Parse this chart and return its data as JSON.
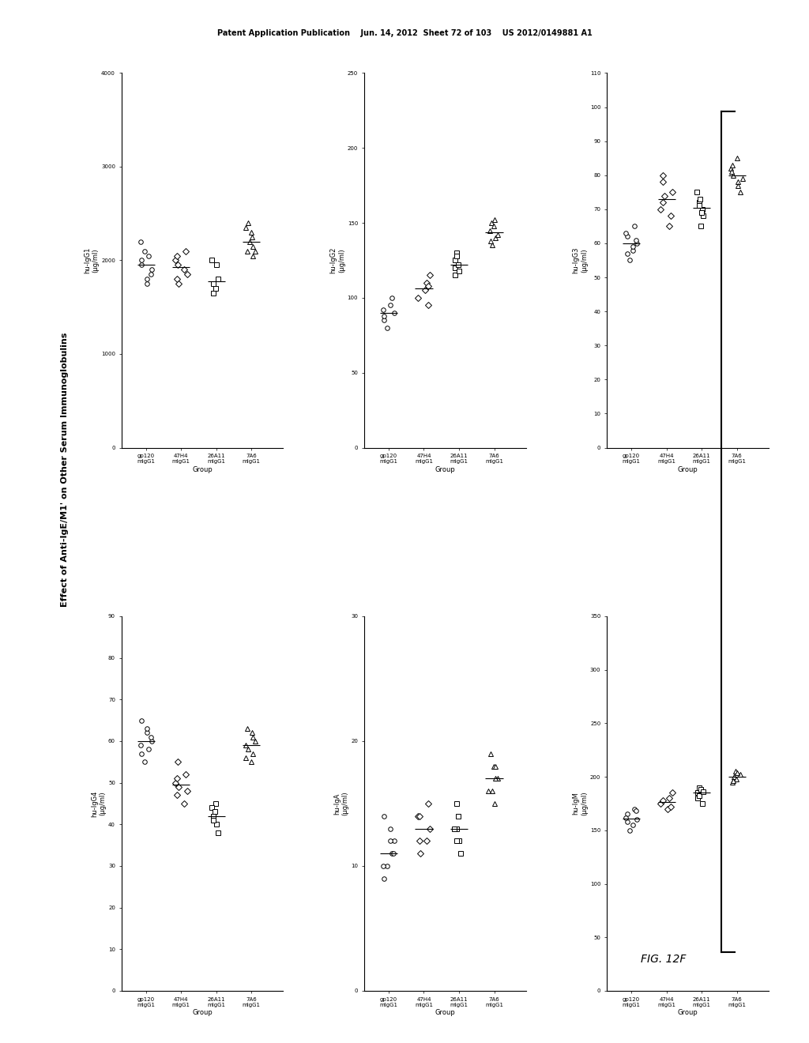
{
  "title": "Effect of Anti-IgE/M1' on Other Serum Immunoglobulins",
  "fig_label": "FIG. 12F",
  "header_text": "Patent Application Publication    Jun. 14, 2012  Sheet 72 of 103    US 2012/0149881 A1",
  "groups": [
    "gp120\nmigG1",
    "47H4\nmigG1",
    "26A11\nmigG1",
    "7A6\nmigG1"
  ],
  "group_labels_xaxis": [
    "gp120\nmIgG1",
    "47H4\nmIgG1",
    "26A11\nmIgG1",
    "7A6\nmIgG1"
  ],
  "plots": [
    {
      "ylabel": "hu-IgG1\n(μg/ml)",
      "ylim": [
        0,
        4000
      ],
      "yticks": [
        0,
        1000,
        2000,
        3000,
        4000
      ],
      "yticklabels": [
        "0",
        "1000-",
        "2000-",
        "3000-",
        "4000-"
      ],
      "data": {
        "gp120": {
          "circles": [
            2100,
            1900,
            2050,
            1800,
            2000,
            1950,
            2200,
            1850,
            1750
          ]
        },
        "47H4": {
          "diamonds": [
            1900,
            2000,
            1850,
            2100,
            1950,
            1800,
            2050,
            1750
          ]
        },
        "26A11": {
          "squares": [
            1950,
            1700,
            1650,
            1800,
            2000,
            1750
          ]
        },
        "7A6": {
          "triangles": [
            2200,
            2300,
            2100,
            2400,
            2250,
            2150,
            2350,
            2050,
            2100
          ]
        }
      }
    },
    {
      "ylabel": "hu-IgG2\n(μg/ml)",
      "ylim": [
        0,
        250
      ],
      "yticks": [
        0,
        50,
        100,
        150,
        200,
        250
      ],
      "yticklabels": [
        "0",
        "50-",
        "100-",
        "150-",
        "200-",
        "250-"
      ],
      "data": {
        "gp120": {
          "circles": [
            80,
            90,
            100,
            95,
            85,
            88,
            92
          ]
        },
        "47H4": {
          "diamonds": [
            95,
            105,
            110,
            100,
            115,
            108
          ]
        },
        "26A11": {
          "squares": [
            120,
            115,
            125,
            130,
            118,
            122,
            128
          ]
        },
        "7A6": {
          "triangles": [
            140,
            145,
            150,
            135,
            148,
            142,
            138,
            152
          ]
        }
      }
    },
    {
      "ylabel": "hu-IgG3\n(μg/ml)",
      "ylim": [
        0,
        110
      ],
      "yticks": [
        0,
        10,
        20,
        30,
        40,
        50,
        60,
        70,
        80,
        90,
        100,
        110
      ],
      "yticklabels": [
        "0",
        "10-",
        "20-",
        "30-",
        "40-",
        "50-",
        "60-",
        "70-",
        "80-",
        "90-",
        "100-",
        "110-"
      ],
      "data": {
        "gp120": {
          "circles": [
            55,
            60,
            65,
            58,
            62,
            57,
            63,
            61,
            59
          ]
        },
        "47H4": {
          "diamonds": [
            65,
            70,
            75,
            68,
            72,
            80,
            78,
            74
          ]
        },
        "26A11": {
          "squares": [
            70,
            65,
            72,
            68,
            75,
            71,
            73,
            69
          ]
        },
        "7A6": {
          "triangles": [
            75,
            80,
            85,
            78,
            82,
            77,
            83,
            81,
            79
          ]
        }
      }
    },
    {
      "ylabel": "hu-IgG4\n(μg/ml)",
      "ylim": [
        0,
        90
      ],
      "yticks": [
        0,
        10,
        20,
        30,
        40,
        50,
        60,
        70,
        80,
        90
      ],
      "yticklabels": [
        "0",
        "10-",
        "20-",
        "30-",
        "40-",
        "50-",
        "60-",
        "70-",
        "80-",
        "90-"
      ],
      "data": {
        "gp120": {
          "circles": [
            55,
            60,
            58,
            62,
            65,
            57,
            59,
            61,
            63
          ]
        },
        "47H4": {
          "diamonds": [
            45,
            50,
            48,
            52,
            55,
            47,
            51,
            49
          ]
        },
        "26A11": {
          "squares": [
            40,
            45,
            42,
            38,
            44,
            41,
            43
          ]
        },
        "7A6": {
          "triangles": [
            55,
            60,
            58,
            62,
            57,
            59,
            61,
            63,
            56
          ]
        }
      }
    },
    {
      "ylabel": "hu-IgA\n(μg/ml)",
      "ylim": [
        0,
        30
      ],
      "yticks": [
        0,
        10,
        20,
        30
      ],
      "yticklabels": [
        "0",
        "10-",
        "20-",
        "30-"
      ],
      "data": {
        "gp120": {
          "circles": [
            10,
            12,
            11,
            13,
            9,
            14,
            10,
            11,
            12
          ]
        },
        "47H4": {
          "diamonds": [
            12,
            14,
            13,
            15,
            11,
            12,
            14
          ]
        },
        "26A11": {
          "squares": [
            13,
            12,
            14,
            15,
            11,
            13,
            12
          ]
        },
        "7A6": {
          "triangles": [
            16,
            18,
            17,
            19,
            15,
            18,
            16,
            17
          ]
        }
      }
    },
    {
      "ylabel": "hu-IgM\n(μg/ml)",
      "ylim": [
        0,
        350
      ],
      "yticks": [
        0,
        50,
        100,
        150,
        200,
        250,
        300,
        350
      ],
      "yticklabels": [
        "0",
        "50-",
        "100-",
        "150-",
        "200-",
        "250-",
        "300-",
        "350-"
      ],
      "data": {
        "gp120": {
          "circles": [
            150,
            160,
            170,
            155,
            165,
            158,
            162,
            168
          ]
        },
        "47H4": {
          "diamonds": [
            170,
            180,
            175,
            185,
            172,
            178
          ]
        },
        "26A11": {
          "squares": [
            185,
            180,
            190,
            175,
            188,
            182,
            186
          ]
        },
        "7A6": {
          "triangles": [
            195,
            200,
            205,
            198,
            202,
            196,
            204
          ]
        }
      }
    }
  ],
  "scatter_params": {
    "circle_color": "white",
    "circle_edge": "black",
    "square_color": "white",
    "square_edge": "black",
    "diamond_color": "white",
    "diamond_edge": "black",
    "triangle_color": "white",
    "triangle_edge": "black",
    "marker_size": 20,
    "jitter": 0.15
  }
}
